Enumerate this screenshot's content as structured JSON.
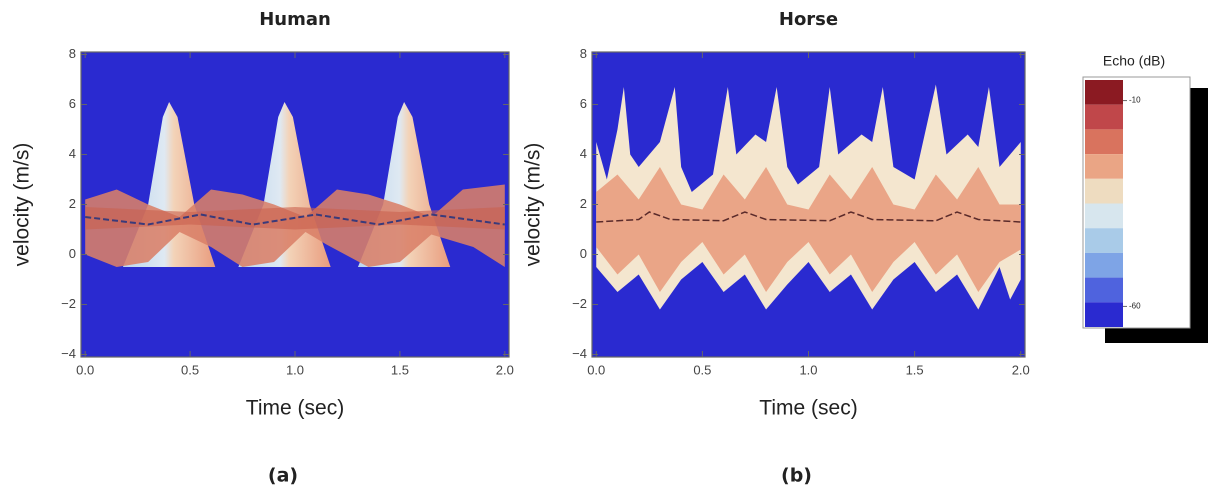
{
  "chart_data": [
    {
      "type": "spectrogram",
      "title": "Human",
      "xlabel": "Time (sec)",
      "ylabel": "velocity (m/s)",
      "panel_label": "(a)",
      "xlim": [
        -0.02,
        2.02
      ],
      "ylim": [
        -4.1,
        8.1
      ],
      "xticks": [
        {
          "value": 0,
          "label": "0.0"
        },
        0.5,
        {
          "value": 1,
          "label": "1.0"
        },
        1.5,
        {
          "value": 2,
          "label": "2.0"
        }
      ],
      "yticks": [
        {
          "value": -4,
          "label": "−4"
        },
        {
          "value": -2,
          "label": "−2"
        },
        0,
        2,
        4,
        6,
        8
      ]
    },
    {
      "type": "spectrogram",
      "title": "Horse",
      "xlabel": "Time (sec)",
      "ylabel": "velocity (m/s)",
      "panel_label": "(b)",
      "xlim": [
        -0.02,
        2.02
      ],
      "ylim": [
        -4.1,
        8.1
      ],
      "xticks": [
        {
          "value": 0,
          "label": "0.0"
        },
        0.5,
        {
          "value": 1,
          "label": "1.0"
        },
        1.5,
        {
          "value": 2,
          "label": "2.0"
        }
      ],
      "yticks": [
        {
          "value": -4,
          "label": "−4"
        },
        {
          "value": -2,
          "label": "−2"
        },
        0,
        2,
        4,
        6,
        8
      ]
    }
  ],
  "colorbar": {
    "title": "Echo (dB)",
    "clim": [
      -65,
      -5
    ],
    "ticks": [
      -10,
      -60
    ],
    "colors": [
      "#8b1a22",
      "#c0474a",
      "#d9735e",
      "#eaa585",
      "#eedcc0",
      "#d7e6ee",
      "#a9cbe8",
      "#7ea4e6",
      "#4f63de",
      "#2a2ad0"
    ]
  }
}
